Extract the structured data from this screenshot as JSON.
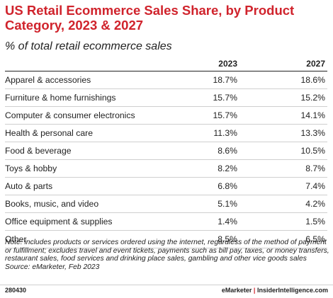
{
  "chart_data": {
    "type": "table",
    "title": "US Retail Ecommerce Sales Share, by Product Category, 2023 & 2027",
    "subtitle": "% of total retail ecommerce sales",
    "columns": [
      "2023",
      "2027"
    ],
    "rows": [
      {
        "category": "Apparel & accessories",
        "values": [
          "18.7%",
          "18.6%"
        ]
      },
      {
        "category": "Furniture & home furnishings",
        "values": [
          "15.7%",
          "15.2%"
        ]
      },
      {
        "category": "Computer & consumer electronics",
        "values": [
          "15.7%",
          "14.1%"
        ]
      },
      {
        "category": "Health & personal care",
        "values": [
          "11.3%",
          "13.3%"
        ]
      },
      {
        "category": "Food & beverage",
        "values": [
          "8.6%",
          "10.5%"
        ]
      },
      {
        "category": "Toys & hobby",
        "values": [
          "8.2%",
          "8.7%"
        ]
      },
      {
        "category": "Auto & parts",
        "values": [
          "6.8%",
          "7.4%"
        ]
      },
      {
        "category": "Books, music, and video",
        "values": [
          "5.1%",
          "4.2%"
        ]
      },
      {
        "category": "Office equipment & supplies",
        "values": [
          "1.4%",
          "1.5%"
        ]
      },
      {
        "category": "Other",
        "values": [
          "8.5%",
          "6.5%"
        ]
      }
    ],
    "note": "Note: includes products or services ordered using the internet, regardless of the method of payment or fulfillment; excludes travel and event tickets, payments such as bill pay, taxes, or money transfers, restaurant sales, food services and drinking place sales, gambling and other vice goods sales",
    "source": "Source: eMarketer, Feb 2023"
  },
  "footer": {
    "chart_id": "280430",
    "brand_left": "eMarketer",
    "separator": "|",
    "brand_right": "InsiderIntelligence.com"
  },
  "colors": {
    "accent": "#d0232c"
  }
}
